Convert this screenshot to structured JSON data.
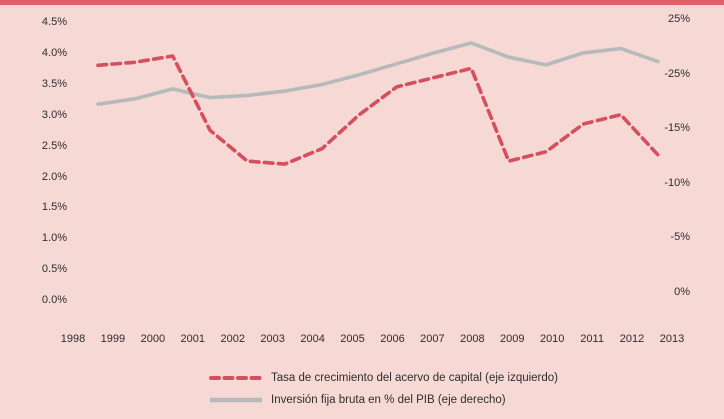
{
  "page": {
    "background": "#f6d8d4",
    "stripe_color": "#e0616a",
    "text_color": "#2e2e2e"
  },
  "chart_data": {
    "type": "line",
    "title": "",
    "grid": false,
    "legend_position": "bottom",
    "categories": [
      "1998",
      "1999",
      "2000",
      "2001",
      "2002",
      "2003",
      "2004",
      "2005",
      "2006",
      "2007",
      "2008",
      "2009",
      "2010",
      "2011",
      "2012",
      "2013"
    ],
    "series": [
      {
        "name": "Tasa de crecimiento del acervo de capital (eje izquierdo)",
        "axis": "left",
        "style": "dashed",
        "color": "#d5505e",
        "values": [
          3.8,
          3.85,
          3.95,
          2.75,
          2.25,
          2.2,
          2.45,
          3.0,
          3.45,
          3.6,
          3.75,
          2.25,
          2.4,
          2.85,
          3.0,
          2.35
        ]
      },
      {
        "name": "Inversión fija bruta en % del PIB (eje derecho)",
        "axis": "right",
        "style": "solid",
        "color": "#b7babd",
        "values": [
          17.2,
          17.7,
          18.6,
          17.8,
          18.0,
          18.4,
          19.0,
          19.9,
          20.9,
          21.9,
          22.8,
          21.5,
          20.8,
          21.9,
          22.3,
          21.1
        ]
      }
    ],
    "left_axis": {
      "tick_labels": [
        "4.5%",
        "4.0%",
        "3.5%",
        "3.0%",
        "2.5%",
        "2.0%",
        "1.5%",
        "1.0%",
        "0.5%",
        "0.0%"
      ],
      "min": 0.0,
      "max": 4.5
    },
    "right_axis": {
      "tick_labels": [
        "25%",
        "-25%",
        "-15%",
        "-10%",
        "-5%",
        "0%"
      ],
      "min": 0,
      "max": 25
    }
  }
}
